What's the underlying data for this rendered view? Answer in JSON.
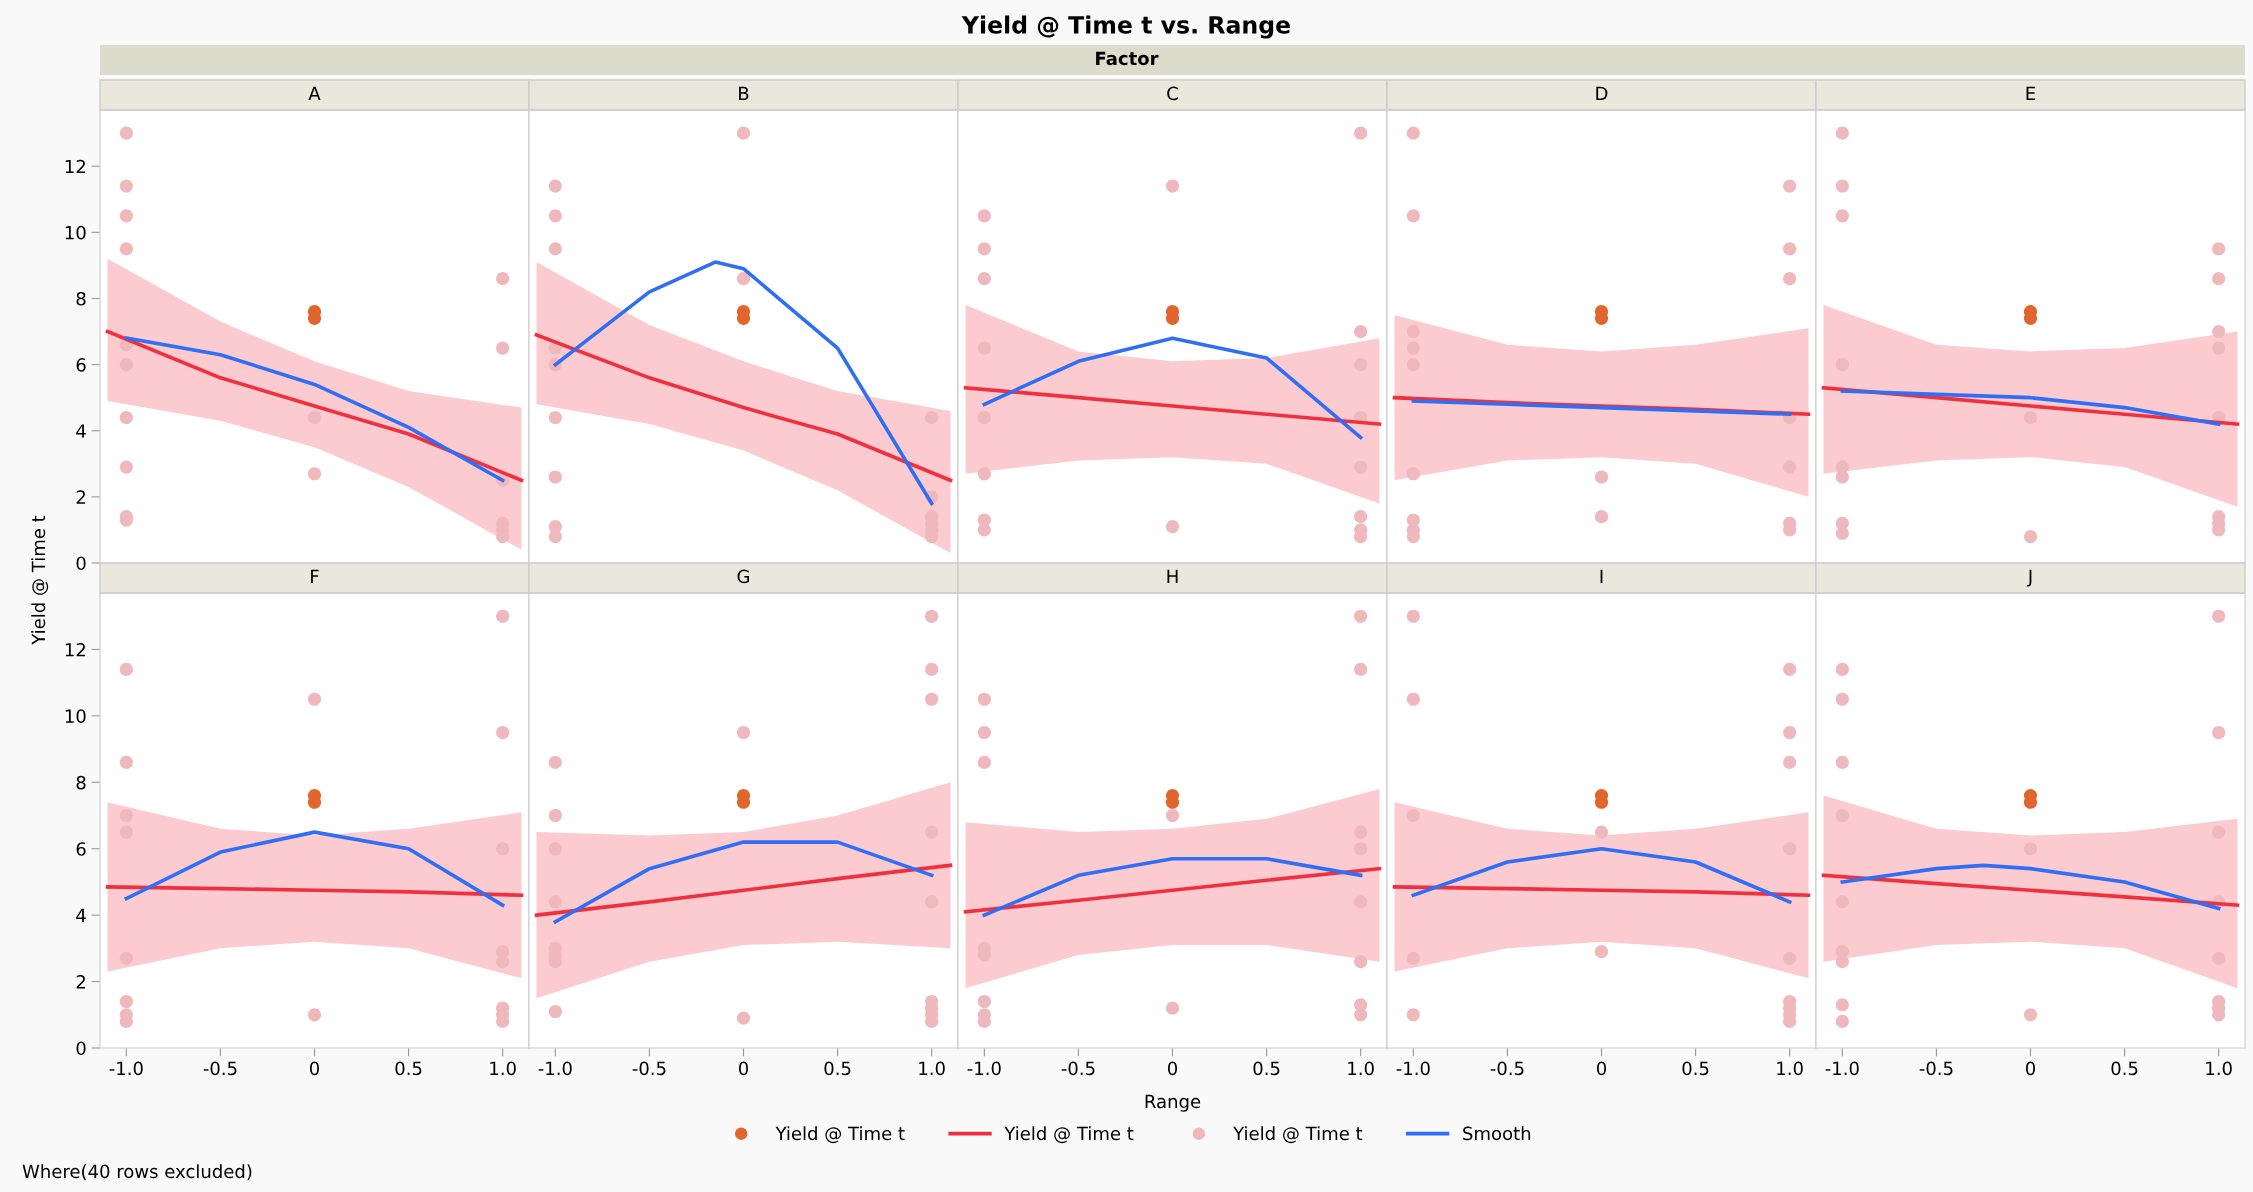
{
  "chart_data": [
    {
      "type": "other",
      "title": "Yield @ Time t vs. Range",
      "subtitle": "Factor",
      "xlabel": "Range",
      "ylabel": "Yield @ Time t",
      "annotations": [
        "Where(40 rows excluded)"
      ]
    },
    {
      "type": "scatter",
      "title": "A",
      "xlim": [
        -1.14,
        1.14
      ],
      "ylim": [
        0,
        13.7
      ],
      "yticks": [
        0,
        2,
        4,
        6,
        8,
        10,
        12
      ],
      "tick_labels": "y",
      "legend": "bottom",
      "series": [
        {
          "name": "Yield @ Time t",
          "type": "scatter",
          "marker": "circle",
          "color": "#e0662e",
          "x": [
            0,
            0
          ],
          "values": [
            7.4,
            7.6
          ]
        },
        {
          "name": "Yield @ Time t",
          "type": "line",
          "color": "#f0303f",
          "x": [
            -1.1,
            -0.5,
            0,
            0.5,
            1.1
          ],
          "values": [
            7.0,
            5.6,
            4.75,
            3.9,
            2.5
          ],
          "lower": [
            4.9,
            4.3,
            3.5,
            2.3,
            0.4
          ],
          "upper": [
            9.2,
            7.3,
            6.1,
            5.2,
            4.7
          ]
        },
        {
          "name": "Yield @ Time t",
          "type": "scatter",
          "marker": "circle",
          "color": "#efb8bc",
          "x": [
            -1,
            -1,
            -1,
            -1,
            -1,
            -1,
            -1,
            -1,
            -1,
            -1,
            0,
            0,
            1,
            1,
            1,
            1,
            1,
            1
          ],
          "values": [
            13.0,
            11.4,
            10.5,
            9.5,
            6.6,
            6.0,
            4.4,
            2.9,
            1.4,
            1.3,
            4.4,
            2.7,
            8.6,
            6.5,
            2.5,
            1.2,
            1.0,
            0.8
          ]
        },
        {
          "name": "Smooth",
          "type": "line",
          "color": "#2f6ef5",
          "x": [
            -1,
            -0.5,
            0,
            0.5,
            1
          ],
          "values": [
            6.8,
            6.3,
            5.4,
            4.1,
            2.5
          ]
        }
      ]
    },
    {
      "type": "scatter",
      "title": "B",
      "xlim": [
        -1.14,
        1.14
      ],
      "ylim": [
        0,
        13.7
      ],
      "yticks": [
        0,
        2,
        4,
        6,
        8,
        10,
        12
      ],
      "tick_labels": false,
      "series": [
        {
          "type": "scatter",
          "marker": "circle",
          "color": "#e0662e",
          "x": [
            0,
            0
          ],
          "values": [
            7.4,
            7.6
          ]
        },
        {
          "type": "line",
          "color": "#f0303f",
          "x": [
            -1.1,
            -0.5,
            0,
            0.5,
            1.1
          ],
          "values": [
            6.9,
            5.6,
            4.7,
            3.9,
            2.5
          ],
          "lower": [
            4.8,
            4.2,
            3.4,
            2.2,
            0.3
          ],
          "upper": [
            9.1,
            7.2,
            6.1,
            5.2,
            4.6
          ]
        },
        {
          "type": "scatter",
          "marker": "circle",
          "color": "#efb8bc",
          "x": [
            -1,
            -1,
            -1,
            -1,
            -1,
            -1,
            -1,
            -1,
            -1,
            0,
            0,
            1,
            1,
            1,
            1,
            1,
            1
          ],
          "values": [
            11.4,
            10.5,
            9.5,
            6.5,
            6.0,
            4.4,
            2.6,
            1.1,
            0.8,
            13.0,
            8.6,
            4.4,
            2.0,
            1.4,
            1.2,
            1.0,
            0.8
          ]
        },
        {
          "type": "line",
          "color": "#2f6ef5",
          "x": [
            -1,
            -0.5,
            -0.15,
            0,
            0.5,
            1
          ],
          "values": [
            6.0,
            8.2,
            9.1,
            8.9,
            6.5,
            1.8
          ]
        }
      ]
    },
    {
      "type": "scatter",
      "title": "C",
      "xlim": [
        -1.14,
        1.14
      ],
      "ylim": [
        0,
        13.7
      ],
      "yticks": [
        0,
        2,
        4,
        6,
        8,
        10,
        12
      ],
      "tick_labels": false,
      "series": [
        {
          "type": "scatter",
          "marker": "circle",
          "color": "#e0662e",
          "x": [
            0,
            0
          ],
          "values": [
            7.4,
            7.6
          ]
        },
        {
          "type": "line",
          "color": "#f0303f",
          "x": [
            -1.1,
            -0.5,
            0,
            0.5,
            1.1
          ],
          "values": [
            5.3,
            5.0,
            4.75,
            4.5,
            4.2
          ],
          "lower": [
            2.7,
            3.1,
            3.2,
            3.0,
            1.8
          ],
          "upper": [
            7.8,
            6.4,
            6.1,
            6.2,
            6.8
          ]
        },
        {
          "type": "scatter",
          "marker": "circle",
          "color": "#efb8bc",
          "x": [
            -1,
            -1,
            -1,
            -1,
            -1,
            -1,
            -1,
            -1,
            0,
            0,
            1,
            1,
            1,
            1,
            1,
            1,
            1,
            1
          ],
          "values": [
            10.5,
            9.5,
            8.6,
            6.5,
            4.4,
            2.7,
            1.3,
            1.0,
            11.4,
            1.1,
            13.0,
            7.0,
            6.0,
            4.4,
            2.9,
            1.4,
            1.0,
            0.8
          ]
        },
        {
          "type": "line",
          "color": "#2f6ef5",
          "x": [
            -1,
            -0.5,
            0,
            0.5,
            1
          ],
          "values": [
            4.8,
            6.1,
            6.8,
            6.2,
            3.8
          ]
        }
      ]
    },
    {
      "type": "scatter",
      "title": "D",
      "xlim": [
        -1.14,
        1.14
      ],
      "ylim": [
        0,
        13.7
      ],
      "yticks": [
        0,
        2,
        4,
        6,
        8,
        10,
        12
      ],
      "tick_labels": false,
      "series": [
        {
          "type": "scatter",
          "marker": "circle",
          "color": "#e0662e",
          "x": [
            0,
            0
          ],
          "values": [
            7.4,
            7.6
          ]
        },
        {
          "type": "line",
          "color": "#f0303f",
          "x": [
            -1.1,
            -0.5,
            0,
            0.5,
            1.1
          ],
          "values": [
            5.0,
            4.85,
            4.75,
            4.65,
            4.5
          ],
          "lower": [
            2.5,
            3.1,
            3.2,
            3.0,
            2.0
          ],
          "upper": [
            7.5,
            6.6,
            6.4,
            6.6,
            7.1
          ]
        },
        {
          "type": "scatter",
          "marker": "circle",
          "color": "#efb8bc",
          "x": [
            -1,
            -1,
            -1,
            -1,
            -1,
            -1,
            -1,
            -1,
            -1,
            0,
            0,
            1,
            1,
            1,
            1,
            1,
            1,
            1
          ],
          "values": [
            13.0,
            10.5,
            7.0,
            6.5,
            6.0,
            2.7,
            1.3,
            1.0,
            0.8,
            2.6,
            1.4,
            11.4,
            9.5,
            8.6,
            4.4,
            2.9,
            1.2,
            1.0
          ]
        },
        {
          "type": "line",
          "color": "#2f6ef5",
          "x": [
            -1,
            -0.5,
            0,
            0.5,
            1
          ],
          "values": [
            4.9,
            4.8,
            4.7,
            4.6,
            4.5
          ]
        }
      ]
    },
    {
      "type": "scatter",
      "title": "E",
      "xlim": [
        -1.14,
        1.14
      ],
      "ylim": [
        0,
        13.7
      ],
      "yticks": [
        0,
        2,
        4,
        6,
        8,
        10,
        12
      ],
      "tick_labels": false,
      "series": [
        {
          "type": "scatter",
          "marker": "circle",
          "color": "#e0662e",
          "x": [
            0,
            0
          ],
          "values": [
            7.4,
            7.6
          ]
        },
        {
          "type": "line",
          "color": "#f0303f",
          "x": [
            -1.1,
            -0.5,
            0,
            0.5,
            1.1
          ],
          "values": [
            5.3,
            5.0,
            4.75,
            4.5,
            4.2
          ],
          "lower": [
            2.7,
            3.1,
            3.2,
            2.9,
            1.7
          ],
          "upper": [
            7.8,
            6.6,
            6.4,
            6.5,
            7.0
          ]
        },
        {
          "type": "scatter",
          "marker": "circle",
          "color": "#efb8bc",
          "x": [
            -1,
            -1,
            -1,
            -1,
            -1,
            -1,
            -1,
            -1,
            0,
            0,
            1,
            1,
            1,
            1,
            1,
            1,
            1,
            1
          ],
          "values": [
            13.0,
            11.4,
            10.5,
            6.0,
            2.9,
            2.6,
            1.2,
            0.9,
            4.4,
            0.8,
            9.5,
            8.6,
            7.0,
            6.5,
            4.4,
            1.4,
            1.2,
            1.0
          ]
        },
        {
          "type": "line",
          "color": "#2f6ef5",
          "x": [
            -1,
            -0.5,
            0,
            0.5,
            1
          ],
          "values": [
            5.2,
            5.1,
            5.0,
            4.7,
            4.2
          ]
        }
      ]
    },
    {
      "type": "scatter",
      "title": "F",
      "xlim": [
        -1.14,
        1.14
      ],
      "ylim": [
        0,
        13.7
      ],
      "xticks": [
        {
          "value": -1,
          "label": "-1.0"
        },
        {
          "value": -0.5,
          "label": "-0.5"
        },
        0,
        0.5,
        {
          "value": 1,
          "label": "1.0"
        }
      ],
      "yticks": [
        0,
        2,
        4,
        6,
        8,
        10,
        12
      ],
      "series": [
        {
          "type": "scatter",
          "marker": "circle",
          "color": "#e0662e",
          "x": [
            0,
            0
          ],
          "values": [
            7.4,
            7.6
          ]
        },
        {
          "type": "line",
          "color": "#f0303f",
          "x": [
            -1.1,
            -0.5,
            0,
            0.5,
            1.1
          ],
          "values": [
            4.85,
            4.8,
            4.75,
            4.7,
            4.6
          ],
          "lower": [
            2.3,
            3.0,
            3.2,
            3.0,
            2.1
          ],
          "upper": [
            7.4,
            6.6,
            6.4,
            6.6,
            7.1
          ]
        },
        {
          "type": "scatter",
          "marker": "circle",
          "color": "#efb8bc",
          "x": [
            -1,
            -1,
            -1,
            -1,
            -1,
            -1,
            -1,
            -1,
            0,
            0,
            1,
            1,
            1,
            1,
            1,
            1,
            1,
            1
          ],
          "values": [
            11.4,
            8.6,
            7.0,
            6.5,
            2.7,
            1.4,
            1.0,
            0.8,
            10.5,
            1.0,
            13.0,
            9.5,
            6.0,
            2.9,
            2.6,
            1.2,
            1.0,
            0.8
          ]
        },
        {
          "type": "line",
          "color": "#2f6ef5",
          "x": [
            -1,
            -0.5,
            0,
            0.5,
            1
          ],
          "values": [
            4.5,
            5.9,
            6.5,
            6.0,
            4.3
          ]
        }
      ]
    },
    {
      "type": "scatter",
      "title": "G",
      "xlim": [
        -1.14,
        1.14
      ],
      "ylim": [
        0,
        13.7
      ],
      "xticks": [
        {
          "value": -1,
          "label": "-1.0"
        },
        {
          "value": -0.5,
          "label": "-0.5"
        },
        0,
        0.5,
        {
          "value": 1,
          "label": "1.0"
        }
      ],
      "yticks": [
        0,
        2,
        4,
        6,
        8,
        10,
        12
      ],
      "tick_labels": "x",
      "series": [
        {
          "type": "scatter",
          "marker": "circle",
          "color": "#e0662e",
          "x": [
            0,
            0
          ],
          "values": [
            7.4,
            7.6
          ]
        },
        {
          "type": "line",
          "color": "#f0303f",
          "x": [
            -1.1,
            -0.5,
            0,
            0.5,
            1.1
          ],
          "values": [
            4.0,
            4.4,
            4.75,
            5.1,
            5.5
          ],
          "lower": [
            1.5,
            2.6,
            3.1,
            3.2,
            3.0
          ],
          "upper": [
            6.5,
            6.4,
            6.5,
            7.0,
            8.0
          ]
        },
        {
          "type": "scatter",
          "marker": "circle",
          "color": "#efb8bc",
          "x": [
            -1,
            -1,
            -1,
            -1,
            -1,
            -1,
            -1,
            -1,
            0,
            0,
            1,
            1,
            1,
            1,
            1,
            1,
            1,
            1,
            1
          ],
          "values": [
            8.6,
            7.0,
            6.0,
            4.4,
            3.0,
            2.8,
            2.6,
            1.1,
            9.5,
            0.9,
            13.0,
            11.4,
            10.5,
            6.5,
            4.4,
            1.4,
            1.2,
            1.0,
            0.8
          ]
        },
        {
          "type": "line",
          "color": "#2f6ef5",
          "x": [
            -1,
            -0.5,
            0,
            0.5,
            1
          ],
          "values": [
            3.8,
            5.4,
            6.2,
            6.2,
            5.2
          ]
        }
      ]
    },
    {
      "type": "scatter",
      "title": "H",
      "xlim": [
        -1.14,
        1.14
      ],
      "ylim": [
        0,
        13.7
      ],
      "xticks": [
        {
          "value": -1,
          "label": "-1.0"
        },
        {
          "value": -0.5,
          "label": "-0.5"
        },
        0,
        0.5,
        {
          "value": 1,
          "label": "1.0"
        }
      ],
      "yticks": [
        0,
        2,
        4,
        6,
        8,
        10,
        12
      ],
      "tick_labels": "x",
      "series": [
        {
          "type": "scatter",
          "marker": "circle",
          "color": "#e0662e",
          "x": [
            0,
            0
          ],
          "values": [
            7.4,
            7.6
          ]
        },
        {
          "type": "line",
          "color": "#f0303f",
          "x": [
            -1.1,
            -0.5,
            0,
            0.5,
            1.1
          ],
          "values": [
            4.1,
            4.45,
            4.75,
            5.05,
            5.4
          ],
          "lower": [
            1.8,
            2.8,
            3.1,
            3.1,
            2.6
          ],
          "upper": [
            6.8,
            6.5,
            6.6,
            6.9,
            7.8
          ]
        },
        {
          "type": "scatter",
          "marker": "circle",
          "color": "#efb8bc",
          "x": [
            -1,
            -1,
            -1,
            -1,
            -1,
            -1,
            -1,
            -1,
            0,
            0,
            1,
            1,
            1,
            1,
            1,
            1,
            1,
            1
          ],
          "values": [
            10.5,
            9.5,
            8.6,
            3.0,
            2.8,
            1.4,
            1.0,
            0.8,
            7.0,
            1.2,
            13.0,
            11.4,
            6.5,
            6.0,
            4.4,
            2.6,
            1.3,
            1.0
          ]
        },
        {
          "type": "line",
          "color": "#2f6ef5",
          "x": [
            -1,
            -0.5,
            0,
            0.5,
            1
          ],
          "values": [
            4.0,
            5.2,
            5.7,
            5.7,
            5.2
          ]
        }
      ]
    },
    {
      "type": "scatter",
      "title": "I",
      "xlim": [
        -1.14,
        1.14
      ],
      "ylim": [
        0,
        13.7
      ],
      "xticks": [
        {
          "value": -1,
          "label": "-1.0"
        },
        {
          "value": -0.5,
          "label": "-0.5"
        },
        0,
        0.5,
        {
          "value": 1,
          "label": "1.0"
        }
      ],
      "yticks": [
        0,
        2,
        4,
        6,
        8,
        10,
        12
      ],
      "tick_labels": "x",
      "series": [
        {
          "type": "scatter",
          "marker": "circle",
          "color": "#e0662e",
          "x": [
            0,
            0
          ],
          "values": [
            7.4,
            7.6
          ]
        },
        {
          "type": "line",
          "color": "#f0303f",
          "x": [
            -1.1,
            -0.5,
            0,
            0.5,
            1.1
          ],
          "values": [
            4.85,
            4.8,
            4.75,
            4.7,
            4.6
          ],
          "lower": [
            2.3,
            3.0,
            3.2,
            3.0,
            2.1
          ],
          "upper": [
            7.4,
            6.6,
            6.4,
            6.6,
            7.1
          ]
        },
        {
          "type": "scatter",
          "marker": "circle",
          "color": "#efb8bc",
          "x": [
            -1,
            -1,
            -1,
            -1,
            -1,
            0,
            0,
            1,
            1,
            1,
            1,
            1,
            1,
            1,
            1,
            1
          ],
          "values": [
            13.0,
            10.5,
            7.0,
            2.7,
            1.0,
            6.5,
            2.9,
            11.4,
            9.5,
            8.6,
            6.0,
            2.7,
            1.4,
            1.2,
            1.0,
            0.8
          ]
        },
        {
          "type": "line",
          "color": "#2f6ef5",
          "x": [
            -1,
            -0.5,
            0,
            0.5,
            1
          ],
          "values": [
            4.6,
            5.6,
            6.0,
            5.6,
            4.4
          ]
        }
      ]
    },
    {
      "type": "scatter",
      "title": "J",
      "xlim": [
        -1.14,
        1.14
      ],
      "ylim": [
        0,
        13.7
      ],
      "xticks": [
        {
          "value": -1,
          "label": "-1.0"
        },
        {
          "value": -0.5,
          "label": "-0.5"
        },
        0,
        0.5,
        {
          "value": 1,
          "label": "1.0"
        }
      ],
      "yticks": [
        0,
        2,
        4,
        6,
        8,
        10,
        12
      ],
      "tick_labels": "x",
      "series": [
        {
          "type": "scatter",
          "marker": "circle",
          "color": "#e0662e",
          "x": [
            0,
            0
          ],
          "values": [
            7.4,
            7.6
          ]
        },
        {
          "type": "line",
          "color": "#f0303f",
          "x": [
            -1.1,
            -0.5,
            0,
            0.5,
            1.1
          ],
          "values": [
            5.2,
            4.95,
            4.75,
            4.55,
            4.3
          ],
          "lower": [
            2.6,
            3.1,
            3.2,
            3.0,
            1.8
          ],
          "upper": [
            7.6,
            6.6,
            6.4,
            6.5,
            6.9
          ]
        },
        {
          "type": "scatter",
          "marker": "circle",
          "color": "#efb8bc",
          "x": [
            -1,
            -1,
            -1,
            -1,
            -1,
            -1,
            -1,
            -1,
            -1,
            0,
            0,
            1,
            1,
            1,
            1,
            1,
            1,
            1,
            1
          ],
          "values": [
            11.4,
            10.5,
            8.6,
            7.0,
            4.4,
            2.9,
            2.6,
            1.3,
            0.8,
            6.0,
            1.0,
            13.0,
            9.5,
            6.5,
            4.4,
            2.7,
            1.4,
            1.2,
            1.0
          ]
        },
        {
          "type": "line",
          "color": "#2f6ef5",
          "x": [
            -1,
            -0.5,
            -0.25,
            0,
            0.5,
            1
          ],
          "values": [
            5.0,
            5.4,
            5.5,
            5.4,
            5.0,
            4.2
          ]
        }
      ]
    }
  ]
}
